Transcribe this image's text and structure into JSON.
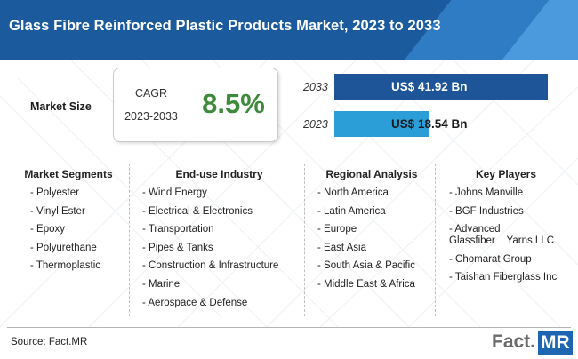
{
  "header": {
    "title": "Glass Fibre Reinforced Plastic Products Market, 2023 to 2033"
  },
  "market_size": {
    "label": "Market Size",
    "cagr_label": "CAGR",
    "cagr_years": "2023-2033",
    "cagr_value": "8.5%"
  },
  "bars": [
    {
      "year": "2033",
      "value": 41.92,
      "label": "US$ 41.92 Bn",
      "color": "#1d5598"
    },
    {
      "year": "2023",
      "value": 18.54,
      "label": "US$ 18.54 Bn",
      "color": "#2b9ed8"
    }
  ],
  "columns": [
    {
      "heading": "Market Segments",
      "items": [
        "- Polyester",
        "- Vinyl Ester",
        "- Epoxy",
        "- Polyurethane",
        "- Thermoplastic"
      ]
    },
    {
      "heading": "End-use Industry",
      "items": [
        "- Wind Energy",
        "- Electrical & Electronics",
        "- Transportation",
        "- Pipes & Tanks",
        "- Construction & Infrastructure",
        "- Marine",
        "- Aerospace & Defense"
      ]
    },
    {
      "heading": "Regional Analysis",
      "items": [
        "- North America",
        "- Latin America",
        "- Europe",
        "- East Asia",
        "- South Asia & Pacific",
        "- Middle East & Africa"
      ]
    },
    {
      "heading": "Key Players",
      "items": [
        "- Johns Manville",
        "- BGF Industries",
        "- Advanced Glassfiber    Yarns LLC",
        "- Chomarat Group",
        "- Taishan Fiberglass Inc"
      ]
    }
  ],
  "footer": {
    "source": "Source: Fact.MR",
    "logo_left": "Fact.",
    "logo_right": "MR"
  }
}
